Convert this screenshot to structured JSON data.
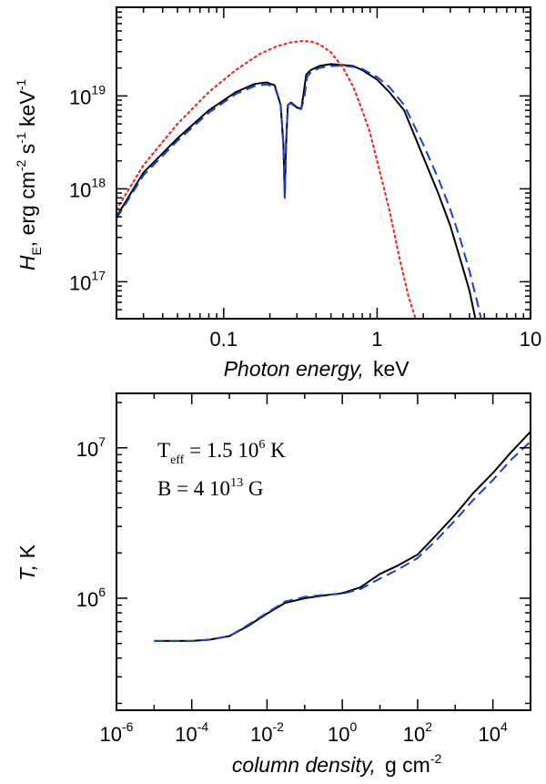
{
  "chart_data": [
    {
      "type": "line",
      "xlabel": "Photon energy,",
      "xunit": "keV",
      "ylabel_symbol": "H",
      "ylabel_sub": "E",
      "ylabel_unit_parts": [
        "erg cm",
        "-2",
        " s",
        "-1",
        " keV",
        "-1"
      ],
      "xscale": "log",
      "yscale": "log",
      "xlim": [
        0.02,
        10
      ],
      "ylim": [
        4e+16,
        9e+19
      ],
      "xticks": [
        {
          "v": 0.1,
          "label": "0.1"
        },
        {
          "v": 1,
          "label": "1"
        },
        {
          "v": 10,
          "label": "10"
        }
      ],
      "yticks": [
        {
          "v": 1e+17,
          "base": "10",
          "exp": "17"
        },
        {
          "v": 1e+18,
          "base": "10",
          "exp": "18"
        },
        {
          "v": 1e+19,
          "base": "10",
          "exp": "19"
        }
      ],
      "series": [
        {
          "color": "#000000",
          "dash": "",
          "x": [
            0.02,
            0.03,
            0.05,
            0.08,
            0.12,
            0.16,
            0.19,
            0.215,
            0.235,
            0.245,
            0.25,
            0.255,
            0.262,
            0.275,
            0.3,
            0.32,
            0.33,
            0.345,
            0.37,
            0.42,
            0.5,
            0.6,
            0.7,
            0.8,
            1.0,
            1.2,
            1.5,
            2.0,
            2.5,
            3.0,
            3.5,
            4.0,
            4.4
          ],
          "y": [
            5e+17,
            1.5e+18,
            3.5e+18,
            7e+18,
            1.1e+19,
            1.35e+19,
            1.4e+19,
            1.3e+19,
            8e+18,
            3e+18,
            8e+17,
            3e+18,
            8e+18,
            8.5e+18,
            7.5e+18,
            7.3e+18,
            1e+19,
            1.7e+19,
            1.9e+19,
            2.1e+19,
            2.2e+19,
            2.15e+19,
            2.1e+19,
            1.9e+19,
            1.5e+19,
            1.1e+19,
            7e+18,
            2.2e+18,
            9e+17,
            4e+17,
            1.7e+17,
            8e+16,
            3.8e+16
          ]
        },
        {
          "color": "#1a3fd0",
          "dash": "11,6",
          "x": [
            0.02,
            0.03,
            0.05,
            0.08,
            0.12,
            0.16,
            0.19,
            0.215,
            0.235,
            0.245,
            0.25,
            0.255,
            0.262,
            0.275,
            0.3,
            0.32,
            0.335,
            0.35,
            0.37,
            0.42,
            0.5,
            0.6,
            0.7,
            0.8,
            1.0,
            1.2,
            1.5,
            2.0,
            2.5,
            3.0,
            3.5,
            4.0,
            4.5,
            4.8
          ],
          "y": [
            4.8e+17,
            1.4e+18,
            3.3e+18,
            6.6e+18,
            1.05e+19,
            1.28e+19,
            1.33e+19,
            1.25e+19,
            8e+18,
            3e+18,
            8e+17,
            3e+18,
            8e+18,
            8.3e+18,
            7.4e+18,
            7.2e+18,
            9.5e+18,
            1.6e+19,
            1.8e+19,
            2e+19,
            2.1e+19,
            2.12e+19,
            2.05e+19,
            1.95e+19,
            1.6e+19,
            1.25e+19,
            8e+18,
            3e+18,
            1.3e+18,
            6e+17,
            2.8e+17,
            1.3e+17,
            6e+16,
            3.8e+16
          ]
        },
        {
          "color": "#ee2a1e",
          "dash": "2,4",
          "x": [
            0.02,
            0.03,
            0.05,
            0.08,
            0.12,
            0.17,
            0.22,
            0.27,
            0.32,
            0.37,
            0.42,
            0.5,
            0.6,
            0.7,
            0.8,
            0.9,
            1.0,
            1.2,
            1.4,
            1.6,
            1.8
          ],
          "y": [
            6e+17,
            1.8e+18,
            5e+18,
            1.1e+19,
            1.9e+19,
            2.8e+19,
            3.4e+19,
            3.75e+19,
            3.9e+19,
            3.85e+19,
            3.6e+19,
            2.95e+19,
            2e+19,
            1.25e+19,
            7e+18,
            4e+18,
            2e+18,
            6e+17,
            1.8e+17,
            7e+16,
            3.8e+16
          ]
        }
      ]
    },
    {
      "type": "line",
      "xlabel": "column density,",
      "xunit_parts": [
        "g cm",
        "-2"
      ],
      "ylabel_symbol": "T,",
      "ylabel_unit": "K",
      "xscale": "log",
      "yscale": "log",
      "xlim": [
        1e-06,
        100000.0
      ],
      "ylim": [
        180000.0,
        23000000.0
      ],
      "xticks": [
        {
          "v": 1e-06,
          "base": "10",
          "exp": "-6"
        },
        {
          "v": 0.0001,
          "base": "10",
          "exp": "-4"
        },
        {
          "v": 0.01,
          "base": "10",
          "exp": "-2"
        },
        {
          "v": 1,
          "base": "10",
          "exp": "0"
        },
        {
          "v": 100,
          "base": "10",
          "exp": "2"
        },
        {
          "v": 10000.0,
          "base": "10",
          "exp": "4"
        }
      ],
      "yticks": [
        {
          "v": 1000000.0,
          "base": "10",
          "exp": "6"
        },
        {
          "v": 10000000.0,
          "base": "10",
          "exp": "7"
        }
      ],
      "annotations": [
        {
          "base": "T",
          "sub": "eff",
          "mid": " = 1.5 10",
          "sup": "6",
          "tail": " K"
        },
        {
          "base": "B = 4 10",
          "sup": "13",
          "tail": " G"
        }
      ],
      "series": [
        {
          "color": "#000000",
          "dash": "",
          "x": [
            1e-05,
            3e-05,
            0.0001,
            0.0003,
            0.001,
            0.003,
            0.01,
            0.03,
            0.1,
            0.3,
            1,
            3,
            10,
            30,
            100,
            300,
            1000,
            3000,
            10000.0,
            30000.0,
            100000.0
          ],
          "y": [
            520000.0,
            520000.0,
            520000.0,
            530000.0,
            560000.0,
            650000.0,
            790000.0,
            930000.0,
            1000000.0,
            1040000.0,
            1080000.0,
            1180000.0,
            1450000.0,
            1650000.0,
            1950000.0,
            2600000.0,
            3600000.0,
            5000000.0,
            6800000.0,
            9300000.0,
            12800000.0
          ]
        },
        {
          "color": "#1a3fd0",
          "dash": "11,6",
          "x": [
            1e-05,
            3e-05,
            0.0001,
            0.0003,
            0.001,
            0.003,
            0.01,
            0.03,
            0.1,
            0.3,
            1,
            3,
            10,
            30,
            100,
            300,
            1000,
            3000,
            10000.0,
            30000.0,
            100000.0
          ],
          "y": [
            520000.0,
            520000.0,
            520000.0,
            530000.0,
            560000.0,
            660000.0,
            800000.0,
            950000.0,
            1020000.0,
            1050000.0,
            1070000.0,
            1150000.0,
            1350000.0,
            1550000.0,
            1850000.0,
            2400000.0,
            3300000.0,
            4500000.0,
            6100000.0,
            8300000.0,
            11000000.0
          ]
        }
      ]
    }
  ]
}
